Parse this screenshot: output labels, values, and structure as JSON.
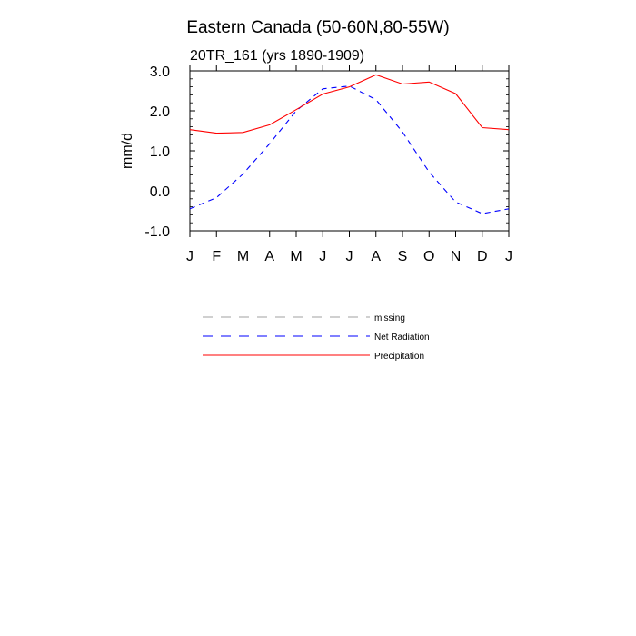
{
  "chart_data": {
    "type": "line",
    "title": "Eastern Canada (50-60N,80-55W)",
    "subtitle": "20TR_161 (yrs 1890-1909)",
    "xlabel": "",
    "ylabel": "mm/d",
    "categories": [
      "J",
      "F",
      "M",
      "A",
      "M",
      "J",
      "J",
      "A",
      "S",
      "O",
      "N",
      "D",
      "J"
    ],
    "ylim": [
      -1.0,
      3.0
    ],
    "yticks": [
      "3.0",
      "2.0",
      "1.0",
      "0.0",
      "-1.0"
    ],
    "ytick_values": [
      3.0,
      2.0,
      1.0,
      0.0,
      -1.0
    ],
    "grid": false,
    "legend_placement": "below-plot",
    "series": [
      {
        "name": "Net Radiation",
        "color": "#0000ff",
        "style": "dashed",
        "values": [
          -0.45,
          -0.17,
          0.42,
          1.18,
          2.0,
          2.55,
          2.62,
          2.28,
          1.47,
          0.47,
          -0.28,
          -0.57,
          -0.45
        ]
      },
      {
        "name": "Precipitation",
        "color": "#ff0000",
        "style": "solid",
        "values": [
          1.53,
          1.44,
          1.46,
          1.65,
          2.03,
          2.42,
          2.6,
          2.9,
          2.67,
          2.72,
          2.43,
          1.58,
          1.53
        ]
      }
    ],
    "legend": [
      {
        "label": "missing",
        "color": "#a0a0a0",
        "style": "dashed"
      },
      {
        "label": "Net Radiation",
        "color": "#0000ff",
        "style": "dashed"
      },
      {
        "label": "Precipitation",
        "color": "#ff0000",
        "style": "solid"
      }
    ]
  }
}
